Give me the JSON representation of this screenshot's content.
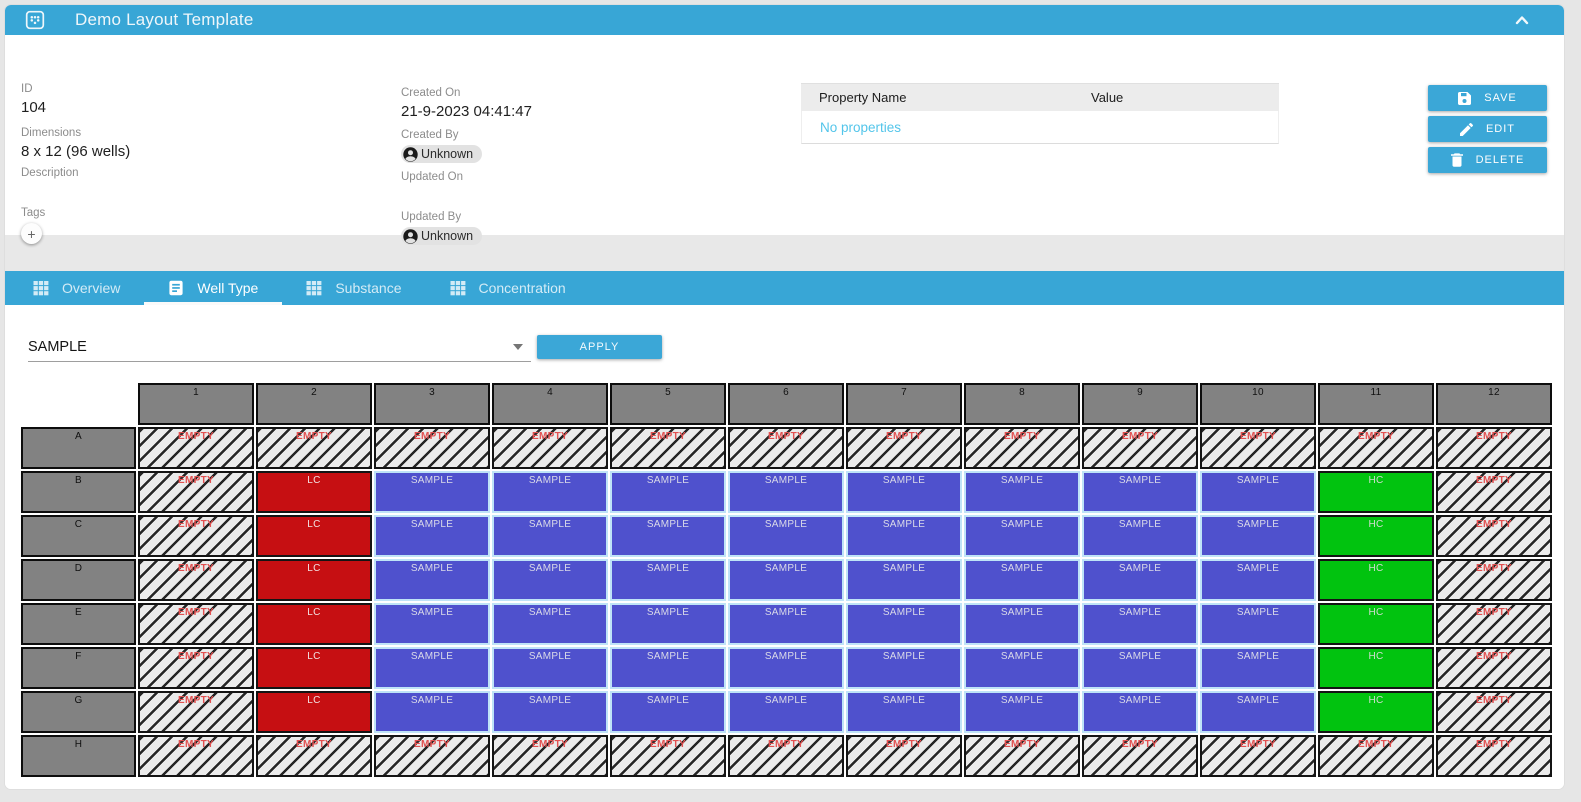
{
  "window": {
    "title": "Demo Layout Template",
    "collapse_icon": "chevron-up-icon"
  },
  "details": {
    "id_label": "ID",
    "id_value": "104",
    "dimensions_label": "Dimensions",
    "dimensions_value": "8 x 12 (96 wells)",
    "description_label": "Description",
    "description_value": "",
    "tags_label": "Tags",
    "add_tag_label": "+",
    "created_on_label": "Created On",
    "created_on_value": "21-9-2023 04:41:47",
    "created_by_label": "Created By",
    "created_by_value": "Unknown",
    "updated_on_label": "Updated On",
    "updated_on_value": "",
    "updated_by_label": "Updated By",
    "updated_by_value": "Unknown"
  },
  "properties_table": {
    "columns": [
      "Property Name",
      "Value"
    ],
    "empty_message": "No properties"
  },
  "actions": [
    {
      "label": "SAVE",
      "icon": "save-icon"
    },
    {
      "label": "EDIT",
      "icon": "pencil-icon"
    },
    {
      "label": "DELETE",
      "icon": "trash-icon"
    }
  ],
  "tabs": [
    {
      "label": "Overview",
      "icon": "grid-icon",
      "active": false
    },
    {
      "label": "Well Type",
      "icon": "document-icon",
      "active": true
    },
    {
      "label": "Substance",
      "icon": "grid-icon",
      "active": false
    },
    {
      "label": "Concentration",
      "icon": "grid-icon",
      "active": false
    }
  ],
  "well_type_panel": {
    "selected_well_type": "SAMPLE",
    "apply_label": "APPLY"
  },
  "plate": {
    "column_headers": [
      "1",
      "2",
      "3",
      "4",
      "5",
      "6",
      "7",
      "8",
      "9",
      "10",
      "11",
      "12"
    ],
    "row_headers": [
      "A",
      "B",
      "C",
      "D",
      "E",
      "F",
      "G",
      "H"
    ],
    "rows": [
      {
        "row": "A",
        "wells": [
          "EMPTY",
          "EMPTY",
          "EMPTY",
          "EMPTY",
          "EMPTY",
          "EMPTY",
          "EMPTY",
          "EMPTY",
          "EMPTY",
          "EMPTY",
          "EMPTY",
          "EMPTY"
        ]
      },
      {
        "row": "B",
        "wells": [
          "EMPTY",
          "LC",
          "SAMPLE",
          "SAMPLE",
          "SAMPLE",
          "SAMPLE",
          "SAMPLE",
          "SAMPLE",
          "SAMPLE",
          "SAMPLE",
          "HC",
          "EMPTY"
        ]
      },
      {
        "row": "C",
        "wells": [
          "EMPTY",
          "LC",
          "SAMPLE",
          "SAMPLE",
          "SAMPLE",
          "SAMPLE",
          "SAMPLE",
          "SAMPLE",
          "SAMPLE",
          "SAMPLE",
          "HC",
          "EMPTY"
        ]
      },
      {
        "row": "D",
        "wells": [
          "EMPTY",
          "LC",
          "SAMPLE",
          "SAMPLE",
          "SAMPLE",
          "SAMPLE",
          "SAMPLE",
          "SAMPLE",
          "SAMPLE",
          "SAMPLE",
          "HC",
          "EMPTY"
        ]
      },
      {
        "row": "E",
        "wells": [
          "EMPTY",
          "LC",
          "SAMPLE",
          "SAMPLE",
          "SAMPLE",
          "SAMPLE",
          "SAMPLE",
          "SAMPLE",
          "SAMPLE",
          "SAMPLE",
          "HC",
          "EMPTY"
        ]
      },
      {
        "row": "F",
        "wells": [
          "EMPTY",
          "LC",
          "SAMPLE",
          "SAMPLE",
          "SAMPLE",
          "SAMPLE",
          "SAMPLE",
          "SAMPLE",
          "SAMPLE",
          "SAMPLE",
          "HC",
          "EMPTY"
        ]
      },
      {
        "row": "G",
        "wells": [
          "EMPTY",
          "LC",
          "SAMPLE",
          "SAMPLE",
          "SAMPLE",
          "SAMPLE",
          "SAMPLE",
          "SAMPLE",
          "SAMPLE",
          "SAMPLE",
          "HC",
          "EMPTY"
        ]
      },
      {
        "row": "H",
        "wells": [
          "EMPTY",
          "EMPTY",
          "EMPTY",
          "EMPTY",
          "EMPTY",
          "EMPTY",
          "EMPTY",
          "EMPTY",
          "EMPTY",
          "EMPTY",
          "EMPTY",
          "EMPTY"
        ]
      }
    ],
    "well_type_colors": {
      "EMPTY": "#ebebeb",
      "LC": "#c60f12",
      "SAMPLE": "#4f51cd",
      "HC": "#01c30f"
    }
  },
  "colors": {
    "accent_blue": "#38a6d6",
    "link_blue": "#53c5ea",
    "header_grey": "#828282",
    "empty_text_red": "#e25050"
  }
}
